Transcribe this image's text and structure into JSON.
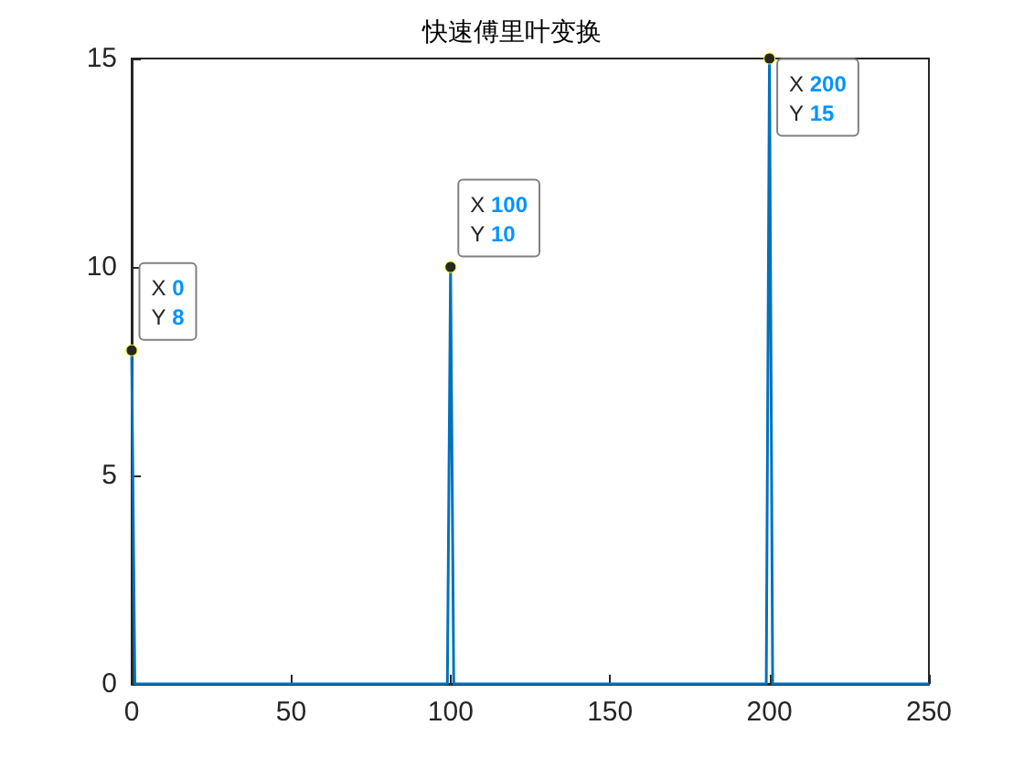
{
  "chart_data": {
    "type": "line",
    "title": "快速傅里叶变换",
    "x": [
      0,
      1,
      99,
      100,
      101,
      199,
      200,
      201,
      250
    ],
    "series": [
      {
        "color": "#0072bd",
        "values": [
          8,
          0,
          0,
          10,
          0,
          0,
          15,
          0,
          0
        ]
      }
    ],
    "xlim": [
      0,
      250
    ],
    "xticks": [
      0,
      50,
      100,
      150,
      200,
      250
    ],
    "ylim": [
      0,
      15
    ],
    "yticks": [
      0,
      5,
      10,
      15
    ],
    "grid": false,
    "marker": "none",
    "line_style": "solid",
    "annotations": [
      {
        "text": "X 0\nY 8",
        "x": 0,
        "y": 8
      },
      {
        "text": "X 100\nY 10",
        "x": 100,
        "y": 10
      },
      {
        "text": "X 200\nY 15",
        "x": 200,
        "y": 15
      }
    ]
  }
}
